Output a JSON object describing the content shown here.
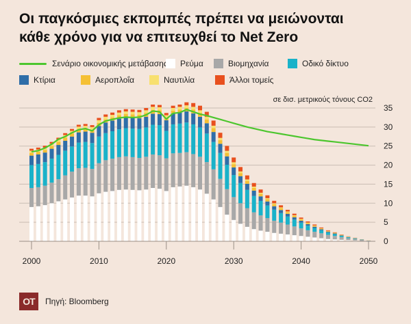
{
  "title_line1": "Οι παγκόσμιες εκπομπές πρέπει να μειώνονται",
  "title_line2": "κάθε χρόνο για να επιτευχθεί το Net Zero",
  "unit": "σε δισ. μετρικούς τόνους CO2",
  "source": "Πηγή: Bloomberg",
  "logo_text": "OT",
  "colors": {
    "background": "#f4e6dc",
    "scenario_line": "#4cc62e",
    "power": "#ffffff",
    "industry": "#a8a8a8",
    "road": "#1ab2c9",
    "buildings": "#2f6ea8",
    "aviation": "#f5c034",
    "shipping": "#f8e070",
    "other": "#e8501e"
  },
  "chart_data": {
    "type": "bar",
    "stacked": true,
    "x": [
      2000,
      2001,
      2002,
      2003,
      2004,
      2005,
      2006,
      2007,
      2008,
      2009,
      2010,
      2011,
      2012,
      2013,
      2014,
      2015,
      2016,
      2017,
      2018,
      2019,
      2020,
      2021,
      2022,
      2023,
      2024,
      2025,
      2026,
      2027,
      2028,
      2029,
      2030,
      2031,
      2032,
      2033,
      2034,
      2035,
      2036,
      2037,
      2038,
      2039,
      2040,
      2041,
      2042,
      2043,
      2044,
      2045,
      2046,
      2047,
      2048,
      2049,
      2050
    ],
    "xticks": [
      2000,
      2010,
      2020,
      2030,
      2040,
      2050
    ],
    "yticks": [
      0,
      5,
      10,
      15,
      20,
      25,
      30,
      35
    ],
    "ylim": [
      0,
      36
    ],
    "legend": [
      {
        "key": "scenario",
        "label": "Σενάριο οικονομικής μετάβασης",
        "kind": "line"
      },
      {
        "key": "power",
        "label": "Ρεύμα",
        "kind": "bar"
      },
      {
        "key": "industry",
        "label": "Βιομηχανία",
        "kind": "bar"
      },
      {
        "key": "road",
        "label": "Οδικό δίκτυο",
        "kind": "bar"
      },
      {
        "key": "buildings",
        "label": "Κτίρια",
        "kind": "bar"
      },
      {
        "key": "aviation",
        "label": "Αεροπλοΐα",
        "kind": "bar"
      },
      {
        "key": "shipping",
        "label": "Ναυτιλία",
        "kind": "bar"
      },
      {
        "key": "other",
        "label": "Άλλοι τομείς",
        "kind": "bar"
      }
    ],
    "series": [
      {
        "key": "power",
        "values": [
          9.0,
          9.2,
          9.5,
          10.0,
          10.5,
          11.0,
          11.5,
          12.0,
          12.0,
          11.8,
          12.6,
          13.0,
          13.2,
          13.5,
          13.6,
          13.5,
          13.4,
          13.6,
          14.0,
          13.8,
          13.2,
          14.2,
          14.4,
          14.6,
          14.2,
          13.6,
          12.5,
          11.0,
          9.0,
          7.0,
          5.6,
          4.6,
          3.8,
          3.2,
          2.8,
          2.5,
          2.2,
          2.0,
          1.8,
          1.6,
          1.4,
          1.2,
          1.0,
          0.8,
          0.6,
          0.5,
          0.4,
          0.3,
          0.2,
          0.1,
          0.05
        ]
      },
      {
        "key": "industry",
        "values": [
          5.0,
          5.0,
          5.1,
          5.4,
          5.8,
          6.3,
          6.8,
          7.2,
          7.3,
          7.2,
          7.9,
          8.3,
          8.5,
          8.6,
          8.7,
          8.6,
          8.5,
          8.6,
          8.8,
          8.8,
          8.6,
          8.9,
          8.8,
          8.8,
          8.7,
          8.6,
          8.3,
          7.9,
          7.4,
          6.7,
          6.0,
          5.4,
          4.9,
          4.4,
          4.0,
          3.6,
          3.2,
          2.9,
          2.6,
          2.3,
          2.0,
          1.7,
          1.5,
          1.3,
          1.1,
          0.9,
          0.7,
          0.5,
          0.4,
          0.25,
          0.1
        ]
      },
      {
        "key": "road",
        "values": [
          6.0,
          6.1,
          6.2,
          6.3,
          6.4,
          6.5,
          6.6,
          6.7,
          6.8,
          6.8,
          7.0,
          7.1,
          7.2,
          7.3,
          7.4,
          7.5,
          7.6,
          7.7,
          7.8,
          7.9,
          7.2,
          7.6,
          7.7,
          7.8,
          7.8,
          7.7,
          7.5,
          7.2,
          6.8,
          6.4,
          5.8,
          5.3,
          4.8,
          4.3,
          3.8,
          3.3,
          2.9,
          2.5,
          2.1,
          1.8,
          1.5,
          1.2,
          1.0,
          0.8,
          0.6,
          0.5,
          0.35,
          0.25,
          0.15,
          0.08,
          0.02
        ]
      },
      {
        "key": "buildings",
        "values": [
          2.5,
          2.5,
          2.5,
          2.6,
          2.6,
          2.6,
          2.6,
          2.7,
          2.7,
          2.7,
          2.8,
          2.8,
          2.8,
          2.8,
          2.8,
          2.8,
          2.8,
          2.8,
          2.9,
          2.9,
          2.8,
          2.9,
          2.9,
          2.9,
          2.9,
          2.8,
          2.7,
          2.6,
          2.4,
          2.2,
          2.0,
          1.8,
          1.6,
          1.4,
          1.2,
          1.05,
          0.9,
          0.8,
          0.7,
          0.6,
          0.5,
          0.4,
          0.32,
          0.25,
          0.2,
          0.15,
          0.1,
          0.07,
          0.05,
          0.03,
          0.01
        ]
      },
      {
        "key": "aviation",
        "values": [
          0.7,
          0.7,
          0.7,
          0.7,
          0.8,
          0.8,
          0.8,
          0.8,
          0.8,
          0.8,
          0.8,
          0.8,
          0.8,
          0.9,
          0.9,
          0.9,
          0.9,
          1.0,
          1.0,
          1.0,
          0.6,
          0.7,
          0.8,
          0.9,
          1.0,
          1.0,
          1.0,
          1.0,
          0.95,
          0.9,
          0.85,
          0.8,
          0.75,
          0.7,
          0.65,
          0.6,
          0.55,
          0.5,
          0.45,
          0.4,
          0.35,
          0.3,
          0.25,
          0.2,
          0.17,
          0.14,
          0.11,
          0.08,
          0.06,
          0.04,
          0.02
        ]
      },
      {
        "key": "shipping",
        "values": [
          0.6,
          0.6,
          0.6,
          0.6,
          0.6,
          0.7,
          0.7,
          0.7,
          0.7,
          0.7,
          0.7,
          0.7,
          0.7,
          0.7,
          0.7,
          0.7,
          0.7,
          0.7,
          0.8,
          0.8,
          0.7,
          0.7,
          0.7,
          0.7,
          0.7,
          0.7,
          0.7,
          0.65,
          0.6,
          0.55,
          0.5,
          0.45,
          0.4,
          0.35,
          0.3,
          0.27,
          0.23,
          0.2,
          0.17,
          0.15,
          0.13,
          0.11,
          0.09,
          0.07,
          0.06,
          0.05,
          0.04,
          0.03,
          0.02,
          0.01,
          0.01
        ]
      },
      {
        "key": "other",
        "values": [
          0.5,
          0.5,
          0.5,
          0.5,
          0.5,
          0.5,
          0.5,
          0.5,
          0.5,
          0.5,
          0.6,
          0.6,
          0.6,
          0.6,
          0.6,
          0.6,
          0.6,
          0.6,
          0.6,
          0.6,
          0.6,
          0.6,
          0.6,
          0.8,
          1.0,
          1.2,
          1.3,
          1.35,
          1.35,
          1.3,
          1.25,
          1.15,
          1.05,
          0.95,
          0.85,
          0.75,
          0.65,
          0.55,
          0.45,
          0.4,
          0.35,
          0.3,
          0.25,
          0.2,
          0.16,
          0.12,
          0.09,
          0.06,
          0.04,
          0.02,
          0.01
        ]
      }
    ],
    "scenario_line": {
      "x": [
        2000,
        2001,
        2002,
        2003,
        2004,
        2005,
        2006,
        2007,
        2008,
        2009,
        2010,
        2011,
        2012,
        2013,
        2014,
        2015,
        2016,
        2017,
        2018,
        2019,
        2020,
        2021,
        2022,
        2023,
        2024,
        2025,
        2026,
        2027,
        2028,
        2029,
        2030,
        2031,
        2032,
        2033,
        2034,
        2035,
        2036,
        2037,
        2038,
        2039,
        2040,
        2041,
        2042,
        2043,
        2044,
        2045,
        2046,
        2047,
        2048,
        2049,
        2050
      ],
      "values": [
        23.5,
        23.8,
        24.5,
        25.5,
        26.8,
        27.5,
        28.5,
        29.3,
        29.6,
        29.0,
        30.6,
        31.6,
        32.0,
        32.4,
        32.6,
        32.5,
        32.6,
        33.2,
        34.2,
        34.0,
        32.1,
        33.6,
        33.8,
        34.6,
        34.0,
        33.4,
        33.0,
        32.5,
        32.0,
        31.5,
        31.0,
        30.5,
        30.0,
        29.6,
        29.2,
        28.8,
        28.5,
        28.2,
        27.9,
        27.6,
        27.3,
        27.0,
        26.7,
        26.5,
        26.3,
        26.1,
        25.9,
        25.7,
        25.5,
        25.3,
        25.1
      ]
    }
  }
}
